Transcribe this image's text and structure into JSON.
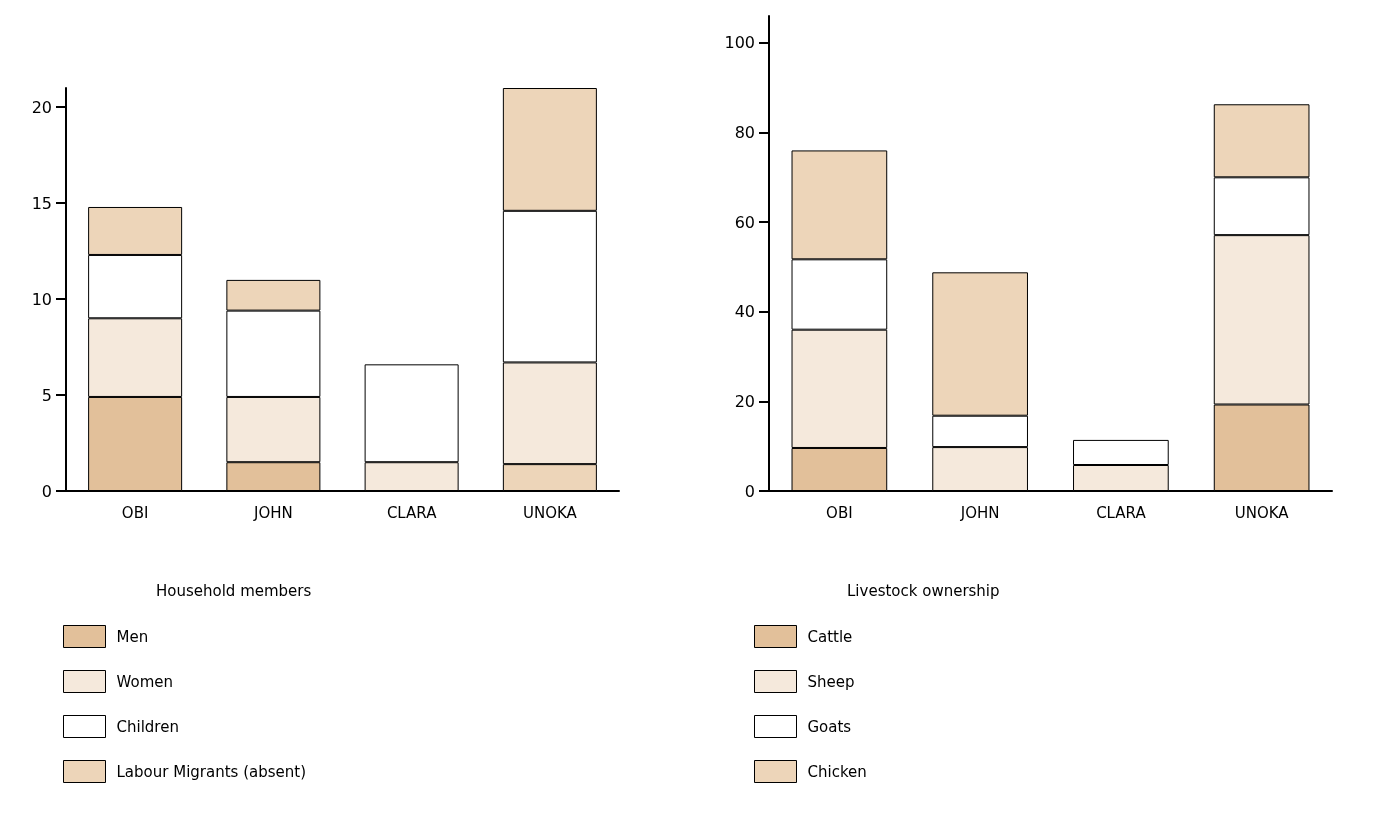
{
  "chart_data": [
    {
      "type": "bar",
      "stacked": true,
      "xlabel": "Household members",
      "categories": [
        "OBI",
        "JOHN",
        "CLARA",
        "UNOKA"
      ],
      "ylim": [
        0,
        21
      ],
      "yticks": [
        0,
        5,
        10,
        15,
        20
      ],
      "grid": false,
      "legend": "bottom",
      "series": [
        {
          "name": "Men",
          "color": "#e2c09a",
          "colors": [
            "#e2c09a",
            "#e2c09a",
            "#e2c09a",
            "#edd5b9"
          ],
          "values": [
            4.9,
            1.5,
            0,
            1.4
          ]
        },
        {
          "name": "Women",
          "color": "#f5e9dc",
          "values": [
            4.1,
            3.4,
            1.5,
            5.3
          ]
        },
        {
          "name": "Children",
          "color": "#ffffff",
          "values": [
            3.3,
            4.5,
            5.1,
            7.9
          ]
        },
        {
          "name": "Labour Migrants (absent)",
          "color": "#edd5b9",
          "values": [
            2.5,
            1.6,
            0,
            6.4
          ]
        }
      ]
    },
    {
      "type": "bar",
      "stacked": true,
      "xlabel": "Livestock ownership",
      "categories": [
        "OBI",
        "JOHN",
        "CLARA",
        "UNOKA"
      ],
      "ylim": [
        0,
        106
      ],
      "yticks": [
        0,
        20,
        40,
        60,
        80,
        100
      ],
      "grid": false,
      "legend": "bottom",
      "series": [
        {
          "name": "Cattle",
          "color": "#e2c09a",
          "values": [
            9.6,
            0,
            0,
            19.3
          ]
        },
        {
          "name": "Sheep",
          "color": "#f5e9dc",
          "values": [
            26.4,
            9.8,
            5.8,
            37.8
          ]
        },
        {
          "name": "Goats",
          "color": "#ffffff",
          "values": [
            15.7,
            7.0,
            5.6,
            12.9
          ]
        },
        {
          "name": "Chicken",
          "color": "#edd5b9",
          "values": [
            24.3,
            32.0,
            0,
            16.3
          ]
        }
      ]
    }
  ]
}
